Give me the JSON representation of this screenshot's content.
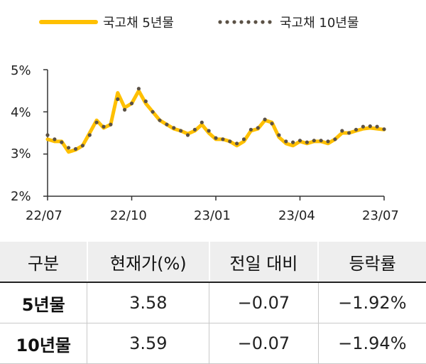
{
  "chart_data": {
    "type": "line",
    "x_labels": [
      "22/07",
      "22/10",
      "23/01",
      "23/04",
      "23/07"
    ],
    "y_ticks": [
      "5%",
      "4%",
      "3%",
      "2%"
    ],
    "ylim": [
      2,
      5
    ],
    "x": [
      "22/07",
      "",
      "",
      "",
      "",
      "",
      "",
      "",
      "",
      "",
      "",
      "",
      "22/10",
      "",
      "",
      "",
      "",
      "",
      "",
      "",
      "",
      "",
      "",
      "",
      "23/01",
      "",
      "",
      "",
      "",
      "",
      "",
      "",
      "",
      "",
      "",
      "",
      "23/04",
      "",
      "",
      "",
      "",
      "",
      "",
      "",
      "",
      "",
      "",
      "",
      "23/07"
    ],
    "series": [
      {
        "name": "국고채 5년물",
        "color": "#FFC000",
        "style": "solid",
        "values": [
          3.35,
          3.3,
          3.3,
          3.05,
          3.1,
          3.2,
          3.5,
          3.8,
          3.62,
          3.7,
          4.45,
          4.1,
          4.2,
          4.5,
          4.2,
          4.0,
          3.8,
          3.7,
          3.6,
          3.55,
          3.48,
          3.55,
          3.7,
          3.5,
          3.35,
          3.35,
          3.3,
          3.2,
          3.3,
          3.55,
          3.6,
          3.8,
          3.75,
          3.4,
          3.25,
          3.2,
          3.3,
          3.25,
          3.3,
          3.3,
          3.25,
          3.35,
          3.5,
          3.5,
          3.55,
          3.6,
          3.62,
          3.6,
          3.58
        ]
      },
      {
        "name": "국고채 10년물",
        "color": "#5b5145",
        "style": "dotted",
        "values": [
          3.45,
          3.35,
          3.28,
          3.15,
          3.12,
          3.2,
          3.45,
          3.75,
          3.65,
          3.7,
          4.3,
          4.05,
          4.2,
          4.55,
          4.25,
          4.0,
          3.8,
          3.7,
          3.62,
          3.55,
          3.45,
          3.58,
          3.75,
          3.55,
          3.38,
          3.35,
          3.3,
          3.25,
          3.35,
          3.58,
          3.62,
          3.82,
          3.72,
          3.45,
          3.3,
          3.28,
          3.32,
          3.28,
          3.32,
          3.32,
          3.3,
          3.35,
          3.55,
          3.5,
          3.58,
          3.65,
          3.66,
          3.65,
          3.59
        ]
      }
    ]
  },
  "table": {
    "headers": [
      "구분",
      "현재가(%)",
      "전일 대비",
      "등락률"
    ],
    "rows": [
      [
        "5년물",
        "3.58",
        "−0.07",
        "−1.92%"
      ],
      [
        "10년물",
        "3.59",
        "−0.07",
        "−1.94%"
      ]
    ]
  }
}
